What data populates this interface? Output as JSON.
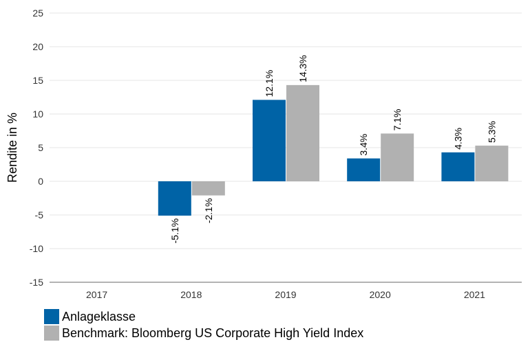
{
  "chart_data": {
    "type": "bar",
    "title": "",
    "xlabel": "",
    "ylabel": "Rendite in %",
    "categories": [
      "2017",
      "2018",
      "2019",
      "2020",
      "2021"
    ],
    "ylim": [
      -15,
      25
    ],
    "yticks": [
      -15,
      -10,
      -5,
      0,
      5,
      10,
      15,
      20,
      25
    ],
    "ytick_labels": [
      "-15",
      "-10",
      "-5",
      "0",
      "5",
      "10",
      "15",
      "20",
      "25"
    ],
    "grid": true,
    "legend_position": "bottom-left",
    "series": [
      {
        "name": "Anlageklasse",
        "color": "#0063a6",
        "values": [
          null,
          -5.1,
          12.1,
          3.4,
          4.3
        ],
        "labels": [
          null,
          "-5.1%",
          "12.1%",
          "3.4%",
          "4.3%"
        ]
      },
      {
        "name": "Benchmark: Bloomberg US Corporate High Yield Index",
        "color": "#b1b1b1",
        "values": [
          null,
          -2.1,
          14.3,
          7.1,
          5.3
        ],
        "labels": [
          null,
          "-2.1%",
          "14.3%",
          "7.1%",
          "5.3%"
        ]
      }
    ]
  }
}
